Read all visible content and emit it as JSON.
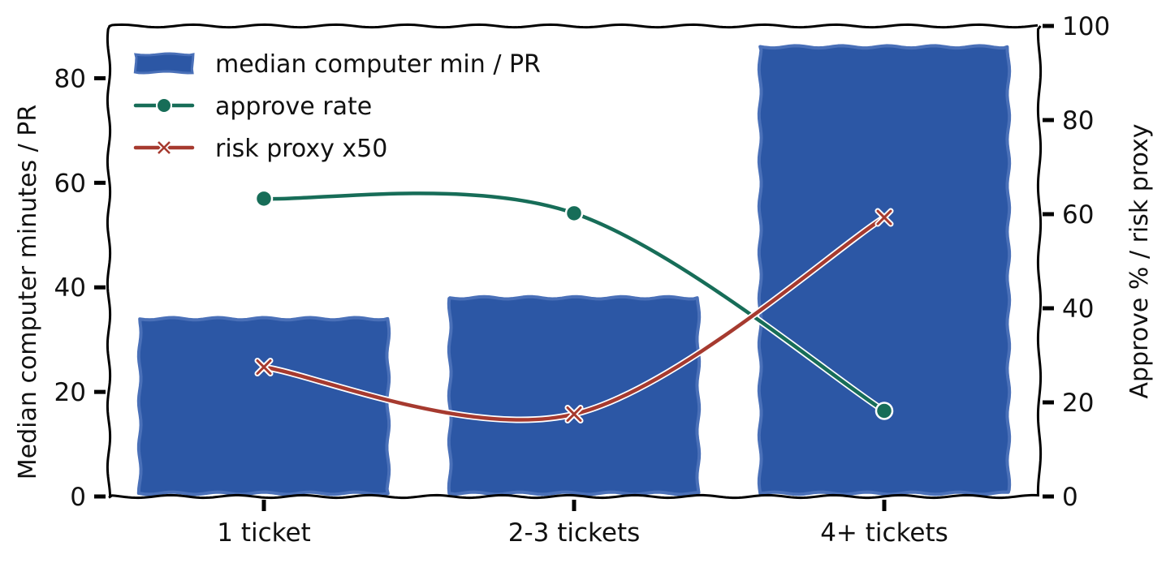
{
  "chart_data": {
    "type": "bar",
    "categories": [
      "1 ticket",
      "2-3 tickets",
      "4+ tickets"
    ],
    "series": [
      {
        "name": "median computer min / PR",
        "type": "bar",
        "axis": "left",
        "values": [
          34,
          38,
          86
        ],
        "color": "#2c57a5"
      },
      {
        "name": "approve rate",
        "type": "line",
        "axis": "right",
        "marker": "circle",
        "values": [
          63.3,
          60.2,
          18.2
        ],
        "color": "#176d58"
      },
      {
        "name": "risk proxy x50",
        "type": "line",
        "axis": "right",
        "marker": "x",
        "values": [
          27.5,
          17.5,
          59.3
        ],
        "color": "#a63a2f"
      }
    ],
    "ylabel": "Median computer minutes / PR",
    "y2label": "Approve % / risk proxy",
    "ylim": [
      0,
      90
    ],
    "y2lim": [
      0,
      100
    ],
    "yticks": [
      0,
      20,
      40,
      60,
      80
    ],
    "y2ticks": [
      0,
      20,
      40,
      60,
      80,
      100
    ],
    "legend": "top-left",
    "grid": false
  }
}
